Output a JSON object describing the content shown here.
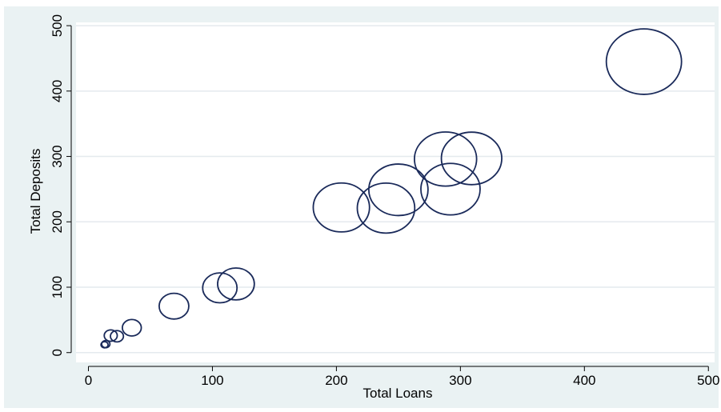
{
  "chart_data": {
    "type": "scatter",
    "title": "",
    "xlabel": "Total Loans",
    "ylabel": "Total Deposits",
    "xlim": [
      -10,
      505
    ],
    "ylim": [
      -15,
      505
    ],
    "xticks": [
      0,
      100,
      200,
      300,
      400,
      500
    ],
    "yticks": [
      0,
      100,
      200,
      300,
      400,
      500
    ],
    "grid": true,
    "legend": "none",
    "marker": "hollow-circle (bubble)",
    "series": [
      {
        "points": [
          {
            "x": 13,
            "y": 12,
            "size": 0.12
          },
          {
            "x": 14,
            "y": 13,
            "size": 0.14
          },
          {
            "x": 18,
            "y": 26,
            "size": 0.22
          },
          {
            "x": 23,
            "y": 25,
            "size": 0.22
          },
          {
            "x": 35,
            "y": 38,
            "size": 0.32
          },
          {
            "x": 69,
            "y": 71,
            "size": 0.5
          },
          {
            "x": 106,
            "y": 99,
            "size": 0.58
          },
          {
            "x": 119,
            "y": 105,
            "size": 0.62
          },
          {
            "x": 204,
            "y": 222,
            "size": 0.95
          },
          {
            "x": 240,
            "y": 221,
            "size": 0.97
          },
          {
            "x": 250,
            "y": 249,
            "size": 1.0
          },
          {
            "x": 288,
            "y": 296,
            "size": 1.05
          },
          {
            "x": 292,
            "y": 250,
            "size": 1.0
          },
          {
            "x": 309,
            "y": 297,
            "size": 1.02
          },
          {
            "x": 448,
            "y": 445,
            "size": 1.27
          }
        ]
      }
    ]
  },
  "colors": {
    "page_background": "#ffffff",
    "plot_region_background": "#eaf2f3",
    "plot_background": "#ffffff",
    "marker_outline": "#1a2a5a",
    "gridline": "#e4eaee",
    "axis": "#000000"
  }
}
